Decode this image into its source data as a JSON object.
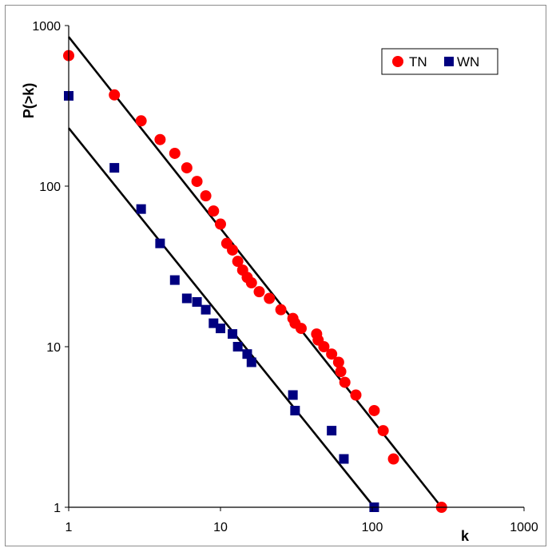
{
  "chart_data": {
    "type": "scatter",
    "xlabel": "k",
    "ylabel": "P(>k)",
    "xscale": "log",
    "yscale": "log",
    "xlim": [
      1,
      1000
    ],
    "ylim": [
      1,
      1000
    ],
    "x_ticks": [
      "1",
      "10",
      "100",
      "1000"
    ],
    "y_ticks": [
      "1",
      "10",
      "100",
      "1000"
    ],
    "grid": false,
    "legend_position": "top-right",
    "series": [
      {
        "name": "TN",
        "marker": "circle",
        "color": "#ff0000",
        "points": [
          [
            1,
            650
          ],
          [
            2,
            370
          ],
          [
            3,
            255
          ],
          [
            4,
            195
          ],
          [
            5,
            160
          ],
          [
            6,
            130
          ],
          [
            7,
            107
          ],
          [
            8,
            87
          ],
          [
            9,
            70
          ],
          [
            10,
            58
          ],
          [
            11,
            44
          ],
          [
            12,
            40
          ],
          [
            13,
            34
          ],
          [
            14,
            30
          ],
          [
            15,
            27
          ],
          [
            16,
            25
          ],
          [
            18,
            22
          ],
          [
            21,
            20
          ],
          [
            25,
            17
          ],
          [
            30,
            15
          ],
          [
            31,
            14
          ],
          [
            34,
            13
          ],
          [
            43,
            12
          ],
          [
            44,
            11
          ],
          [
            48,
            10
          ],
          [
            54,
            9
          ],
          [
            60,
            8
          ],
          [
            62,
            7
          ],
          [
            66,
            6
          ],
          [
            78,
            5
          ],
          [
            103,
            4
          ],
          [
            118,
            3
          ],
          [
            138,
            2
          ],
          [
            286,
            1
          ]
        ],
        "fit_line": [
          [
            1,
            850
          ],
          [
            286,
            1
          ]
        ]
      },
      {
        "name": "WN",
        "marker": "square",
        "color": "#000080",
        "points": [
          [
            1,
            365
          ],
          [
            2,
            130
          ],
          [
            3,
            72
          ],
          [
            4,
            44
          ],
          [
            5,
            26
          ],
          [
            6,
            20
          ],
          [
            7,
            19
          ],
          [
            8,
            17
          ],
          [
            9,
            14
          ],
          [
            10,
            13
          ],
          [
            12,
            12
          ],
          [
            13,
            10
          ],
          [
            15,
            9
          ],
          [
            16,
            8
          ],
          [
            30,
            5
          ],
          [
            31,
            4
          ],
          [
            54,
            3
          ],
          [
            65,
            2
          ],
          [
            103,
            1
          ]
        ],
        "fit_line": [
          [
            1,
            230
          ],
          [
            103,
            1
          ]
        ]
      }
    ],
    "fit_line_color": "#000000"
  }
}
